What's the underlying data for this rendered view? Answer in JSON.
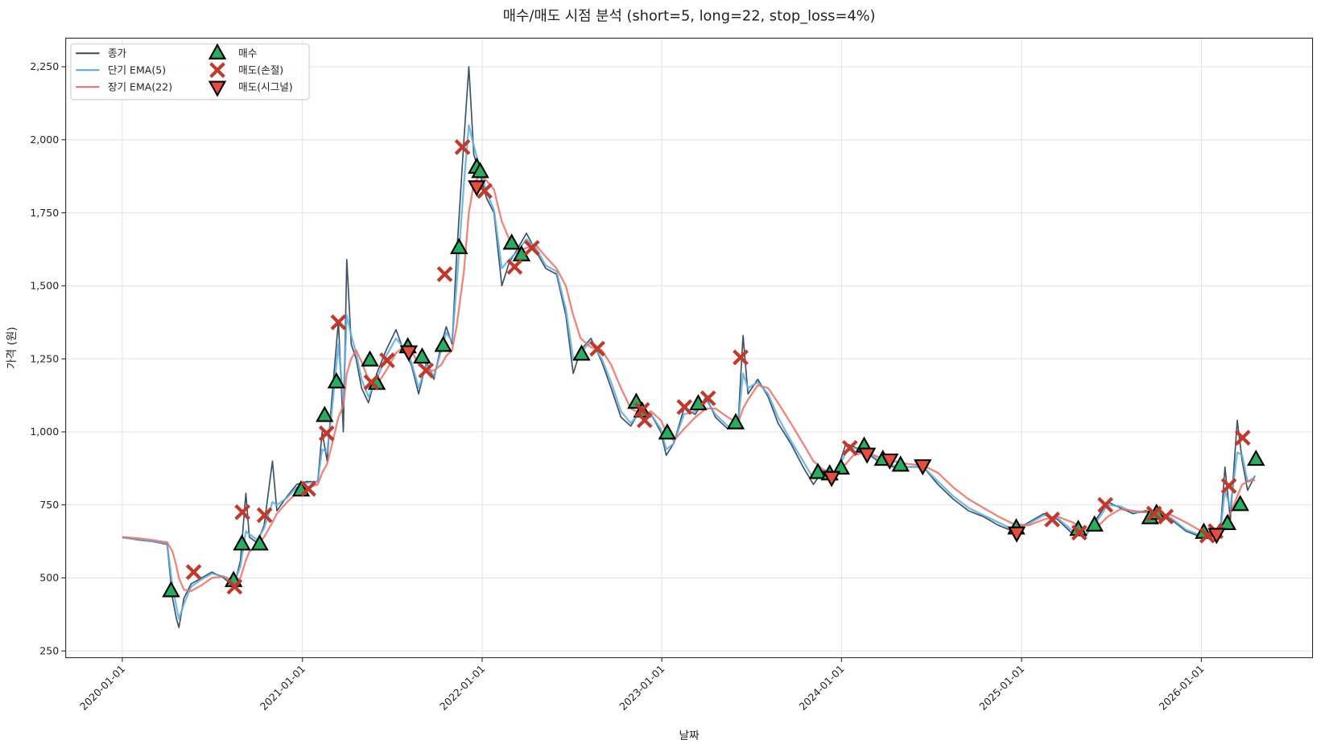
{
  "chart_data": {
    "type": "line",
    "title": "매수/매도 시점 분석 (short=5, long=22, stop_loss=4%)",
    "x_label": "날짜",
    "y_label": "가격 (원)",
    "grid": true,
    "legend": "upper-left",
    "xlim": [
      "2019-09-08",
      "2026-08-15"
    ],
    "xticks": [
      "2020-01-01",
      "2021-01-01",
      "2022-01-01",
      "2023-01-01",
      "2024-01-01",
      "2025-01-01",
      "2026-01-01"
    ],
    "ylim": [
      227,
      2348
    ],
    "yticks": [
      250,
      500,
      750,
      {
        "value": 1000,
        "label": "1,000"
      },
      {
        "value": 1250,
        "label": "1,250"
      },
      {
        "value": 1500,
        "label": "1,500"
      },
      {
        "value": 1750,
        "label": "1,750"
      },
      {
        "value": 2000,
        "label": "2,000"
      },
      {
        "value": 2250,
        "label": "2,250"
      }
    ],
    "x": [
      "2020-01-01",
      "2020-02-01",
      "2020-03-01",
      "2020-04-01",
      "2020-04-12",
      "2020-04-20",
      "2020-04-25",
      "2020-05-05",
      "2020-05-20",
      "2020-06-10",
      "2020-07-01",
      "2020-07-25",
      "2020-08-15",
      "2020-08-28",
      "2020-09-08",
      "2020-09-15",
      "2020-10-01",
      "2020-10-15",
      "2020-11-01",
      "2020-11-10",
      "2020-12-01",
      "2020-12-20",
      "2021-01-10",
      "2021-02-01",
      "2021-02-10",
      "2021-02-20",
      "2021-03-01",
      "2021-03-15",
      "2021-03-25",
      "2021-04-01",
      "2021-04-10",
      "2021-04-20",
      "2021-05-01",
      "2021-05-15",
      "2021-06-01",
      "2021-06-20",
      "2021-07-10",
      "2021-07-25",
      "2021-08-10",
      "2021-08-25",
      "2021-09-10",
      "2021-09-25",
      "2021-10-10",
      "2021-10-20",
      "2021-11-01",
      "2021-11-10",
      "2021-11-25",
      "2021-12-05",
      "2021-12-15",
      "2021-12-28",
      "2022-01-10",
      "2022-01-25",
      "2022-02-10",
      "2022-02-25",
      "2022-03-15",
      "2022-04-01",
      "2022-04-20",
      "2022-05-10",
      "2022-06-01",
      "2022-06-20",
      "2022-07-05",
      "2022-07-20",
      "2022-08-10",
      "2022-09-01",
      "2022-09-20",
      "2022-10-10",
      "2022-10-30",
      "2022-11-20",
      "2022-12-10",
      "2022-12-30",
      "2023-01-10",
      "2023-01-25",
      "2023-02-15",
      "2023-03-10",
      "2023-04-01",
      "2023-04-20",
      "2023-05-15",
      "2023-06-05",
      "2023-06-15",
      "2023-06-25",
      "2023-07-15",
      "2023-08-05",
      "2023-08-25",
      "2023-09-20",
      "2023-10-15",
      "2023-11-05",
      "2023-11-25",
      "2023-12-20",
      "2024-01-10",
      "2024-01-25",
      "2024-02-20",
      "2024-03-15",
      "2024-04-15",
      "2024-05-15",
      "2024-06-15",
      "2024-07-15",
      "2024-08-15",
      "2024-09-15",
      "2024-10-15",
      "2024-11-15",
      "2024-12-15",
      "2025-01-15",
      "2025-02-15",
      "2025-03-15",
      "2025-04-15",
      "2025-05-10",
      "2025-06-01",
      "2025-06-25",
      "2025-07-20",
      "2025-08-15",
      "2025-09-10",
      "2025-10-05",
      "2025-11-01",
      "2025-12-01",
      "2026-01-01",
      "2026-01-25",
      "2026-02-10",
      "2026-02-18",
      "2026-03-01",
      "2026-03-15",
      "2026-03-25",
      "2026-04-05",
      "2026-04-20"
    ],
    "series": [
      {
        "name": "종가",
        "style": "line",
        "color": "#34495e",
        "values": [
          640,
          630,
          625,
          615,
          430,
          360,
          330,
          430,
          480,
          500,
          520,
          500,
          470,
          560,
          790,
          640,
          620,
          680,
          900,
          730,
          780,
          820,
          830,
          830,
          1000,
          900,
          1100,
          1380,
          1000,
          1590,
          1300,
          1250,
          1150,
          1100,
          1200,
          1280,
          1350,
          1280,
          1230,
          1130,
          1240,
          1180,
          1300,
          1360,
          1300,
          1600,
          2000,
          2250,
          1950,
          1880,
          1800,
          1750,
          1500,
          1580,
          1630,
          1680,
          1620,
          1560,
          1540,
          1400,
          1200,
          1280,
          1320,
          1240,
          1150,
          1050,
          1020,
          1080,
          1060,
          1000,
          920,
          960,
          1080,
          1060,
          1120,
          1050,
          1010,
          1030,
          1330,
          1130,
          1180,
          1120,
          1030,
          960,
          880,
          820,
          870,
          850,
          960,
          950,
          930,
          900,
          880,
          880,
          880,
          820,
          770,
          730,
          710,
          680,
          660,
          690,
          720,
          700,
          650,
          640,
          700,
          760,
          740,
          720,
          730,
          720,
          700,
          660,
          640,
          650,
          690,
          880,
          700,
          1040,
          900,
          800,
          850
        ]
      },
      {
        "name": "단기 EMA(5)",
        "style": "line",
        "color": "#5dade2",
        "values": [
          638,
          632,
          626,
          618,
          470,
          400,
          360,
          410,
          470,
          495,
          515,
          505,
          480,
          540,
          660,
          650,
          630,
          670,
          760,
          750,
          775,
          810,
          825,
          830,
          940,
          930,
          1060,
          1300,
          1100,
          1400,
          1330,
          1270,
          1180,
          1120,
          1180,
          1260,
          1320,
          1290,
          1240,
          1150,
          1230,
          1190,
          1280,
          1340,
          1310,
          1500,
          1850,
          2050,
          1980,
          1900,
          1820,
          1760,
          1560,
          1590,
          1620,
          1660,
          1630,
          1570,
          1550,
          1420,
          1250,
          1270,
          1310,
          1250,
          1170,
          1070,
          1030,
          1070,
          1060,
          1010,
          940,
          960,
          1060,
          1070,
          1110,
          1060,
          1020,
          1030,
          1200,
          1150,
          1170,
          1130,
          1050,
          970,
          900,
          840,
          860,
          855,
          930,
          945,
          935,
          905,
          885,
          880,
          880,
          830,
          780,
          740,
          715,
          690,
          665,
          685,
          715,
          705,
          660,
          645,
          690,
          750,
          745,
          725,
          725,
          720,
          705,
          665,
          645,
          650,
          680,
          800,
          740,
          930,
          920,
          830,
          845
        ]
      },
      {
        "name": "장기 EMA(22)",
        "style": "line",
        "color": "#ec7063",
        "values": [
          640,
          636,
          630,
          622,
          590,
          540,
          500,
          460,
          455,
          475,
          500,
          505,
          490,
          500,
          560,
          590,
          610,
          640,
          690,
          720,
          760,
          790,
          810,
          820,
          860,
          890,
          950,
          1050,
          1090,
          1200,
          1250,
          1280,
          1240,
          1180,
          1160,
          1210,
          1270,
          1290,
          1280,
          1230,
          1210,
          1210,
          1230,
          1260,
          1280,
          1360,
          1550,
          1750,
          1850,
          1880,
          1860,
          1830,
          1720,
          1660,
          1620,
          1630,
          1640,
          1600,
          1560,
          1500,
          1400,
          1320,
          1290,
          1280,
          1230,
          1150,
          1080,
          1060,
          1070,
          1040,
          1000,
          970,
          1010,
          1050,
          1080,
          1080,
          1050,
          1030,
          1080,
          1110,
          1160,
          1150,
          1100,
          1030,
          960,
          900,
          870,
          860,
          890,
          920,
          930,
          915,
          900,
          890,
          885,
          860,
          810,
          770,
          740,
          710,
          685,
          680,
          700,
          710,
          690,
          665,
          670,
          710,
          735,
          730,
          725,
          720,
          715,
          690,
          660,
          650,
          660,
          700,
          720,
          780,
          820,
          830,
          835
        ]
      },
      {
        "name": "매수",
        "style": "marker",
        "marker": "triangle-up",
        "color": "#27ae60",
        "x": [
          "2020-04-09",
          "2020-08-14",
          "2020-08-31",
          "2020-10-06",
          "2020-12-29",
          "2021-02-15",
          "2021-03-11",
          "2021-05-18",
          "2021-06-01",
          "2021-08-03",
          "2021-09-01",
          "2021-10-14",
          "2021-11-15",
          "2021-12-21",
          "2021-12-28",
          "2022-03-02",
          "2022-03-22",
          "2022-07-22",
          "2022-11-10",
          "2022-11-22",
          "2023-01-12",
          "2023-03-16",
          "2023-05-31",
          "2023-11-14",
          "2023-12-08",
          "2023-12-31",
          "2024-02-16",
          "2024-03-25",
          "2024-04-30",
          "2024-12-21",
          "2025-04-26",
          "2025-05-29",
          "2025-09-19",
          "2025-10-02",
          "2026-01-06",
          "2026-02-23",
          "2026-03-21",
          "2026-04-22"
        ],
        "values": [
          455,
          490,
          615,
          615,
          800,
          1055,
          1170,
          1245,
          1165,
          1290,
          1255,
          1295,
          1630,
          1905,
          1890,
          1645,
          1605,
          1265,
          1100,
          1070,
          995,
          1095,
          1030,
          860,
          855,
          875,
          950,
          905,
          885,
          670,
          665,
          680,
          705,
          720,
          655,
          685,
          750,
          905
        ]
      },
      {
        "name": "매도(손절)",
        "style": "marker",
        "marker": "x",
        "color": "#c0392b",
        "x": [
          "2020-05-25",
          "2020-08-16",
          "2020-09-01",
          "2020-10-16",
          "2021-01-13",
          "2021-02-19",
          "2021-03-15",
          "2021-05-21",
          "2021-06-22",
          "2021-09-09",
          "2021-10-17",
          "2021-11-22",
          "2022-01-06",
          "2022-03-08",
          "2022-04-12",
          "2022-08-23",
          "2022-11-22",
          "2022-11-27",
          "2023-02-16",
          "2023-04-05",
          "2023-06-10",
          "2024-01-18",
          "2025-03-04",
          "2025-04-28",
          "2025-06-20",
          "2025-09-27",
          "2025-10-21",
          "2026-01-13",
          "2026-01-30",
          "2026-02-26",
          "2026-03-26"
        ],
        "values": [
          520,
          470,
          725,
          715,
          805,
          995,
          1375,
          1170,
          1245,
          1210,
          1540,
          1975,
          1825,
          1565,
          1630,
          1285,
          1075,
          1040,
          1085,
          1115,
          1255,
          945,
          700,
          655,
          750,
          720,
          710,
          645,
          660,
          815,
          980
        ]
      },
      {
        "name": "매도(시그널)",
        "style": "marker",
        "marker": "triangle-down",
        "color": "#e74c3c",
        "x": [
          "2021-08-05",
          "2021-12-21",
          "2023-12-12",
          "2024-02-22",
          "2024-04-08",
          "2024-06-14",
          "2024-12-22",
          "2026-02-01"
        ],
        "values": [
          1275,
          1840,
          845,
          925,
          905,
          885,
          655,
          650
        ]
      }
    ]
  }
}
